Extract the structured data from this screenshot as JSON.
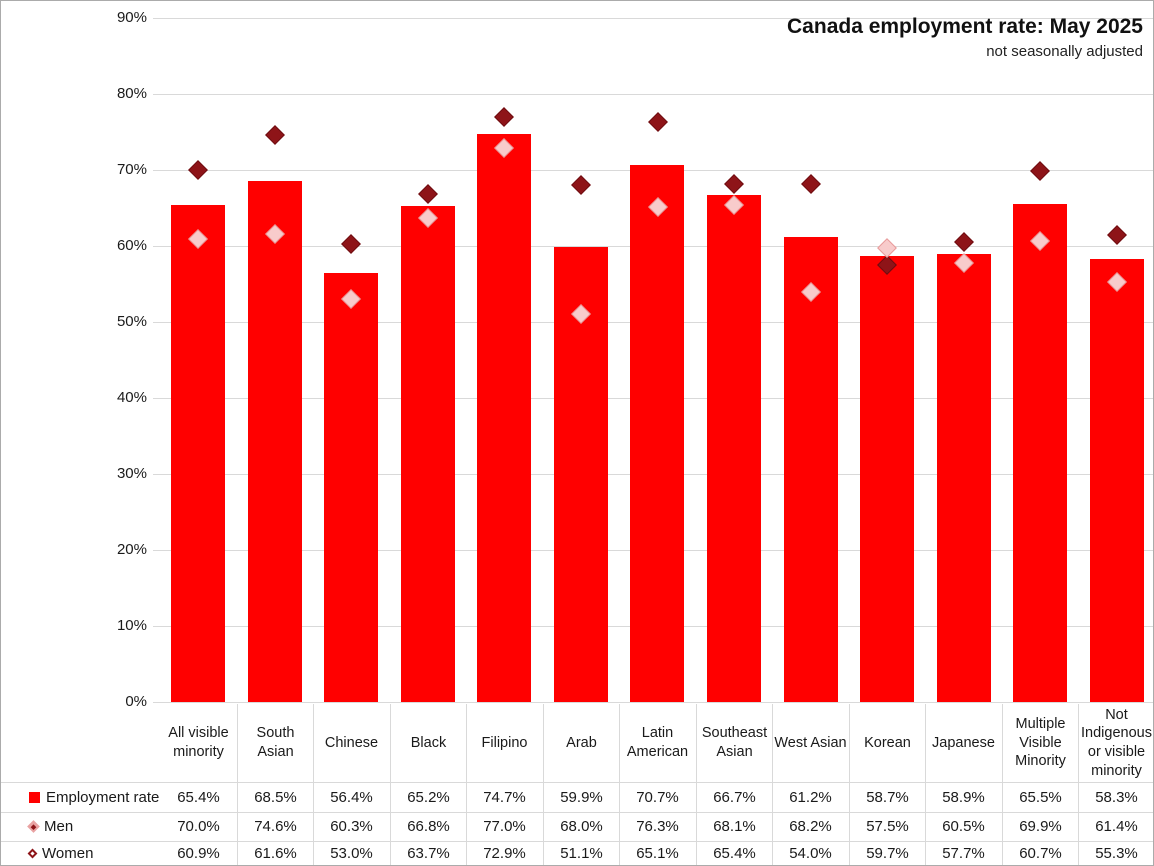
{
  "title": "Canada employment rate: May 2025",
  "subtitle": "not seasonally adjusted",
  "colors": {
    "bar": "#ff0000",
    "men_marker": "#8e1418",
    "men_marker_border": "#6f0c10",
    "women_marker_fill": "#f8cbcb",
    "women_marker_border": "#e89a9a",
    "gridline": "#d9d9d9",
    "text": "#1a1a1a"
  },
  "chart_data": {
    "type": "bar",
    "title": "Canada employment rate: May 2025",
    "subtitle": "not seasonally adjusted",
    "categories": [
      "All visible minority",
      "South Asian",
      "Chinese",
      "Black",
      "Filipino",
      "Arab",
      "Latin American",
      "Southeast Asian",
      "West Asian",
      "Korean",
      "Japanese",
      "Multiple Visible Minority",
      "Not Indigenous or visible minority"
    ],
    "series": [
      {
        "name": "Employment rate",
        "marker": "bar",
        "values": [
          65.4,
          68.5,
          56.4,
          65.2,
          74.7,
          59.9,
          70.7,
          66.7,
          61.2,
          58.7,
          58.9,
          65.5,
          58.3
        ]
      },
      {
        "name": "Men",
        "marker": "diamond-dark",
        "values": [
          70.0,
          74.6,
          60.3,
          66.8,
          77.0,
          68.0,
          76.3,
          68.1,
          68.2,
          57.5,
          60.5,
          69.9,
          61.4
        ]
      },
      {
        "name": "Women",
        "marker": "diamond-pink",
        "values": [
          60.9,
          61.6,
          53.0,
          63.7,
          72.9,
          51.1,
          65.1,
          65.4,
          54.0,
          59.7,
          57.7,
          60.7,
          55.3
        ]
      }
    ],
    "ylim": [
      0,
      90
    ],
    "yticks": [
      "0%",
      "10%",
      "20%",
      "30%",
      "40%",
      "50%",
      "60%",
      "70%",
      "80%",
      "90%"
    ],
    "grid": true,
    "legend_position": "data-table-left"
  },
  "table": {
    "rows": [
      {
        "label": "Employment rate",
        "key_icon": "red-square-icon",
        "values": [
          "65.4%",
          "68.5%",
          "56.4%",
          "65.2%",
          "74.7%",
          "59.9%",
          "70.7%",
          "66.7%",
          "61.2%",
          "58.7%",
          "58.9%",
          "65.5%",
          "58.3%"
        ]
      },
      {
        "label": "Men",
        "key_icon": "pink-diamond-dark-center-icon",
        "values": [
          "70.0%",
          "74.6%",
          "60.3%",
          "66.8%",
          "77.0%",
          "68.0%",
          "76.3%",
          "68.1%",
          "68.2%",
          "57.5%",
          "60.5%",
          "69.9%",
          "61.4%"
        ]
      },
      {
        "label": "Women",
        "key_icon": "open-diamond-icon",
        "values": [
          "60.9%",
          "61.6%",
          "53.0%",
          "63.7%",
          "72.9%",
          "51.1%",
          "65.1%",
          "65.4%",
          "54.0%",
          "59.7%",
          "57.7%",
          "60.7%",
          "55.3%"
        ]
      }
    ]
  }
}
